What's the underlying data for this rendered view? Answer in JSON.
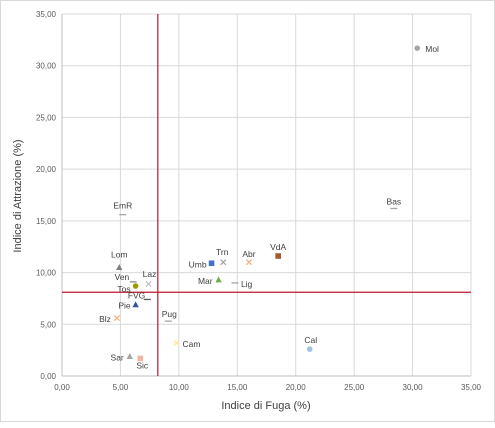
{
  "chart_data": {
    "type": "scatter",
    "title": "",
    "xlabel": "Indice di Fuga (%)",
    "ylabel": "Indice di Attrazione (%)",
    "xlim": [
      0,
      35
    ],
    "ylim": [
      0,
      35
    ],
    "xticks": [
      "0,00",
      "5,00",
      "10,00",
      "15,00",
      "20,00",
      "25,00",
      "30,00",
      "35,00"
    ],
    "yticks": [
      "0,00",
      "5,00",
      "10,00",
      "15,00",
      "20,00",
      "25,00",
      "30,00",
      "35,00"
    ],
    "grid": true,
    "reference_lines": {
      "x": 8.2,
      "y": 8.1,
      "color": "#c0142c"
    },
    "points": [
      {
        "label": "Mol",
        "x": 30.4,
        "y": 31.7,
        "color": "#a6a6a6",
        "marker": "circle"
      },
      {
        "label": "Bas",
        "x": 28.4,
        "y": 16.2,
        "color": "#a6a6a6",
        "marker": "dash"
      },
      {
        "label": "EmR",
        "x": 5.2,
        "y": 15.6,
        "color": "#a6a6a6",
        "marker": "dash"
      },
      {
        "label": "Lom",
        "x": 4.9,
        "y": 10.5,
        "color": "#7f7f7f",
        "marker": "triangle"
      },
      {
        "label": "Ven",
        "x": 6.1,
        "y": 9.1,
        "color": "#8c8c8c",
        "marker": "dash"
      },
      {
        "label": "Laz",
        "x": 7.4,
        "y": 8.9,
        "color": "#bfbfbf",
        "marker": "x"
      },
      {
        "label": "Tos",
        "x": 6.3,
        "y": 8.7,
        "color": "#9c9c00",
        "marker": "circle"
      },
      {
        "label": "Trn",
        "x": 13.8,
        "y": 11.0,
        "color": "#a6a6a6",
        "marker": "x"
      },
      {
        "label": "Umb",
        "x": 12.8,
        "y": 10.9,
        "color": "#4472c4",
        "marker": "square"
      },
      {
        "label": "Abr",
        "x": 16.0,
        "y": 11.0,
        "color": "#f4b183",
        "marker": "x"
      },
      {
        "label": "VdA",
        "x": 18.5,
        "y": 11.6,
        "color": "#a05a2c",
        "marker": "square"
      },
      {
        "label": "Mar",
        "x": 13.4,
        "y": 9.3,
        "color": "#70ad47",
        "marker": "triangle"
      },
      {
        "label": "Lig",
        "x": 14.8,
        "y": 9.0,
        "color": "#a6a6a6",
        "marker": "dash"
      },
      {
        "label": "FVG",
        "x": 7.3,
        "y": 7.4,
        "color": "#595959",
        "marker": "dash"
      },
      {
        "label": "Pie",
        "x": 6.3,
        "y": 6.9,
        "color": "#2f5597",
        "marker": "triangle"
      },
      {
        "label": "Blz",
        "x": 4.7,
        "y": 5.6,
        "color": "#f4b183",
        "marker": "x"
      },
      {
        "label": "Pug",
        "x": 9.1,
        "y": 5.3,
        "color": "#a6a6a6",
        "marker": "dash"
      },
      {
        "label": "Cam",
        "x": 9.8,
        "y": 3.2,
        "color": "#ffe699",
        "marker": "x"
      },
      {
        "label": "Cal",
        "x": 21.2,
        "y": 2.6,
        "color": "#9dc3e6",
        "marker": "circle"
      },
      {
        "label": "Sar",
        "x": 5.8,
        "y": 1.9,
        "color": "#a5a5a5",
        "marker": "triangle"
      },
      {
        "label": "Sic",
        "x": 6.7,
        "y": 1.7,
        "color": "#f4b6a4",
        "marker": "square"
      }
    ]
  }
}
